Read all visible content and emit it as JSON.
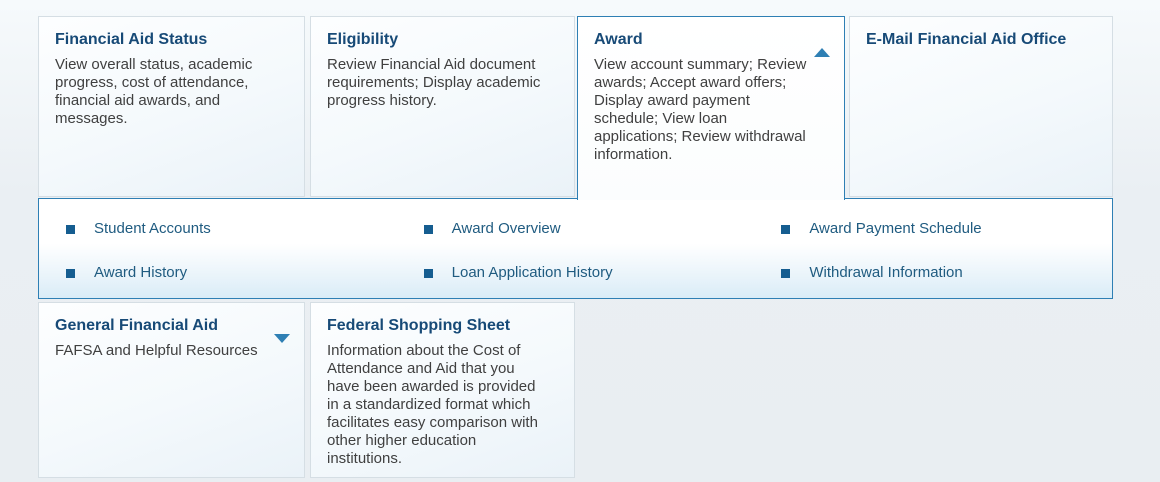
{
  "colors": {
    "accent_blue": "#2e7fb4",
    "heading_navy": "#174a77",
    "body_text": "#404040",
    "link_text": "#1f5b80",
    "bullet_blue": "#155d90",
    "card_border": "#d5dee4",
    "page_background": "#e9eef2"
  },
  "cards": [
    {
      "id": "financial-aid-status",
      "title": "Financial Aid Status",
      "description": "View overall status, academic progress, cost of attendance, financial aid awards, and messages."
    },
    {
      "id": "eligibility",
      "title": "Eligibility",
      "description": "Review Financial Aid document requirements; Display academic progress history."
    },
    {
      "id": "award",
      "title": "Award",
      "description": "View account summary; Review awards; Accept award offers; Display award payment schedule; View loan applications; Review withdrawal information.",
      "state": "expanded",
      "arrow_icon": "collapse-up-arrow"
    },
    {
      "id": "email-financial-aid-office",
      "title": "E-Mail Financial Aid Office",
      "description": ""
    },
    {
      "id": "general-financial-aid",
      "title": "General Financial Aid",
      "description": "FAFSA and Helpful Resources",
      "state": "collapsed",
      "arrow_icon": "expand-down-arrow"
    },
    {
      "id": "federal-shopping-sheet",
      "title": "Federal Shopping Sheet",
      "description": "Information about the Cost of Attendance and Aid that you have been awarded is provided in a standardized format which facilitates easy comparison with other higher education institutions."
    }
  ],
  "award_menu": {
    "items": [
      {
        "label": "Student Accounts"
      },
      {
        "label": "Award Overview"
      },
      {
        "label": "Award Payment Schedule"
      },
      {
        "label": "Award History"
      },
      {
        "label": "Loan Application History"
      },
      {
        "label": "Withdrawal Information"
      }
    ]
  }
}
